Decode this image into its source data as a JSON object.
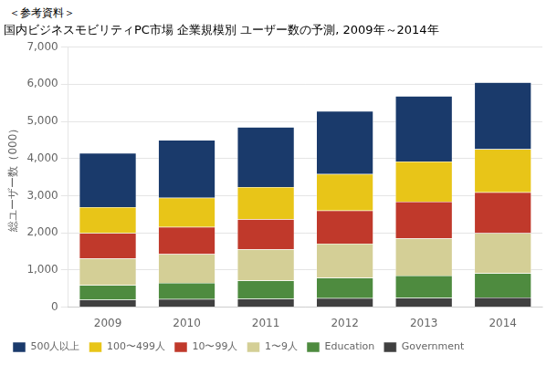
{
  "chart_data": {
    "type": "bar",
    "stacked": true,
    "title": "国内ビジネスモビリティPC市場 企業規模別 ユーザー数の予測, 2009年～2014年",
    "annotations": [
      "＜参考資料＞"
    ],
    "ylabel": "総ユーザー数（000）",
    "categories": [
      "2009",
      "2010",
      "2011",
      "2012",
      "2013",
      "2014"
    ],
    "series": [
      {
        "name": "Government",
        "color": "#404040",
        "values": [
          200,
          215,
          225,
          240,
          250,
          260
        ]
      },
      {
        "name": "Education",
        "color": "#4e8b3f",
        "values": [
          390,
          440,
          490,
          550,
          600,
          650
        ]
      },
      {
        "name": "1〜9人",
        "color": "#d4cf96",
        "values": [
          720,
          770,
          840,
          920,
          1000,
          1080
        ]
      },
      {
        "name": "10〜99人",
        "color": "#c0392b",
        "values": [
          680,
          730,
          810,
          890,
          990,
          1100
        ]
      },
      {
        "name": "100〜499人",
        "color": "#e8c518",
        "values": [
          700,
          790,
          870,
          980,
          1080,
          1160
        ]
      },
      {
        "name": "500人以上",
        "color": "#1a3a6b",
        "values": [
          1460,
          1555,
          1615,
          1700,
          1760,
          1800
        ]
      }
    ],
    "ylim": [
      0,
      7000
    ],
    "yticks": [
      0,
      {
        "value": 1000,
        "label": "1,000"
      },
      {
        "value": 2000,
        "label": "2,000"
      },
      {
        "value": 3000,
        "label": "3,000"
      },
      {
        "value": 4000,
        "label": "4,000"
      },
      {
        "value": 5000,
        "label": "5,000"
      },
      {
        "value": 6000,
        "label": "6,000"
      },
      {
        "value": 7000,
        "label": "7,000"
      }
    ],
    "grid": true,
    "legend": "lower left"
  }
}
